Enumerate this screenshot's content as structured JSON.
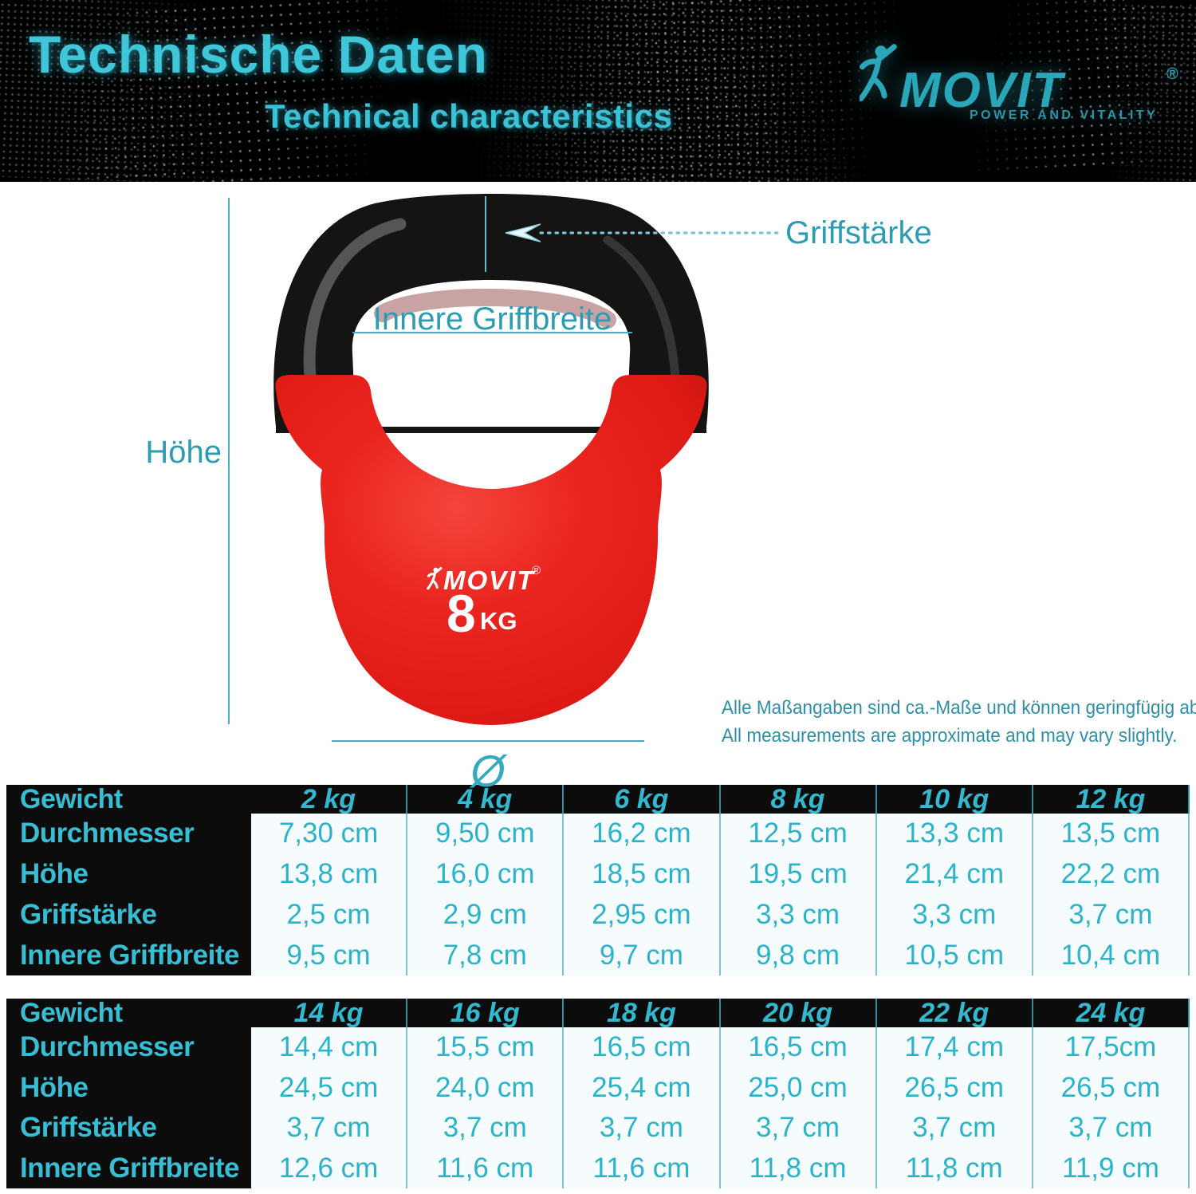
{
  "header": {
    "title": "Technische Daten",
    "subtitle": "Technical characteristics",
    "brand": {
      "name": "MOVIT",
      "registered": "®",
      "tagline": "POWER AND VITALITY"
    }
  },
  "diagram": {
    "labels": {
      "grip_thickness": "Griffstärke",
      "inner_grip_width": "Innere Griffbreite",
      "height": "Höhe",
      "diameter_symbol": "Ø"
    },
    "kettlebell": {
      "brand": "MOVIT",
      "registered": "®",
      "weight_value": "8",
      "weight_unit": "KG"
    },
    "disclaimer_de": "Alle Maßangaben sind ca.-Maße und können geringfügig abweichen.",
    "disclaimer_en": "All measurements are approximate and may vary slightly."
  },
  "tables": [
    {
      "header_label": "Gewicht",
      "columns": [
        "2 kg",
        "4 kg",
        "6 kg",
        "8 kg",
        "10 kg",
        "12 kg"
      ],
      "rows": [
        {
          "label": "Durchmesser",
          "values": [
            "7,30 cm",
            "9,50 cm",
            "16,2 cm",
            "12,5 cm",
            "13,3 cm",
            "13,5 cm"
          ]
        },
        {
          "label": "Höhe",
          "values": [
            "13,8 cm",
            "16,0 cm",
            "18,5 cm",
            "19,5 cm",
            "21,4 cm",
            "22,2 cm"
          ]
        },
        {
          "label": "Griffstärke",
          "values": [
            "2,5 cm",
            "2,9 cm",
            "2,95 cm",
            "3,3 cm",
            "3,3 cm",
            "3,7 cm"
          ]
        },
        {
          "label": "Innere Griffbreite",
          "values": [
            "9,5 cm",
            "7,8 cm",
            "9,7 cm",
            "9,8 cm",
            "10,5 cm",
            "10,4 cm"
          ]
        }
      ]
    },
    {
      "header_label": "Gewicht",
      "columns": [
        "14 kg",
        "16 kg",
        "18 kg",
        "20 kg",
        "22 kg",
        "24 kg"
      ],
      "rows": [
        {
          "label": "Durchmesser",
          "values": [
            "14,4 cm",
            "15,5 cm",
            "16,5 cm",
            "16,5 cm",
            "17,4 cm",
            "17,5cm"
          ]
        },
        {
          "label": "Höhe",
          "values": [
            "24,5 cm",
            "24,0 cm",
            "25,4 cm",
            "25,0 cm",
            "26,5 cm",
            "26,5 cm"
          ]
        },
        {
          "label": "Griffstärke",
          "values": [
            "3,7 cm",
            "3,7 cm",
            "3,7 cm",
            "3,7 cm",
            "3,7 cm",
            "3,7 cm"
          ]
        },
        {
          "label": "Innere Griffbreite",
          "values": [
            "12,6 cm",
            "11,6 cm",
            "11,6 cm",
            "11,8 cm",
            "11,8 cm",
            "11,9 cm"
          ]
        }
      ]
    }
  ],
  "colors": {
    "accent_teal": "#2fb0c7",
    "title_teal": "#3fc6d9",
    "logo_teal": "#29a7b9",
    "measurement_teal": "#2d9cb3",
    "kettlebell_red": "#e8231e",
    "background_black": "#000000",
    "table_cell_bg": "#f6fbfd"
  }
}
